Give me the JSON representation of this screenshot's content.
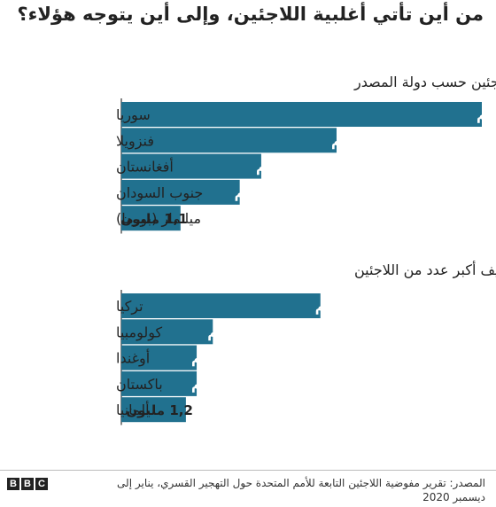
{
  "title": "من أين تأتي أغلبية اللاجئين، وإلى أين يتوجه هؤلاء؟",
  "colors": {
    "bar": "#21718f",
    "text": "#222222"
  },
  "chart_data": [
    {
      "type": "bar",
      "orientation": "horizontal",
      "title": "عدد اللاجئين حسب دولة المصدر",
      "categories": [
        "سوريا",
        "فنزويلا",
        "أفغانستان",
        "جنوب السودان",
        "ميانمار (بورما)"
      ],
      "values": [
        6.7,
        4,
        2.6,
        2.2,
        1.1
      ],
      "labels": [
        "6,7 م",
        "4 م",
        "2,6 م",
        "2,2 م",
        "1,1 مليون"
      ],
      "unit": "million"
    },
    {
      "type": "bar",
      "orientation": "horizontal",
      "title": "الدول التي تستضيف أكبر عدد من اللاجئين",
      "categories": [
        "تركيا",
        "كولومبيا",
        "أوغندا",
        "باكستان",
        "ألمانيا"
      ],
      "values": [
        3.7,
        1.7,
        1.4,
        1.4,
        1.2
      ],
      "labels": [
        "3,7 م",
        "1,7 م",
        "1,4 م",
        "1,4 م",
        "1,2 مليون"
      ],
      "unit": "million"
    }
  ],
  "source": "المصدر: تقرير مفوضية اللاجئين التابعة للأمم المتحدة حول التهجير القسري، يناير إلى ديسمبر 2020",
  "logo": {
    "letters": [
      "B",
      "B",
      "C"
    ]
  }
}
